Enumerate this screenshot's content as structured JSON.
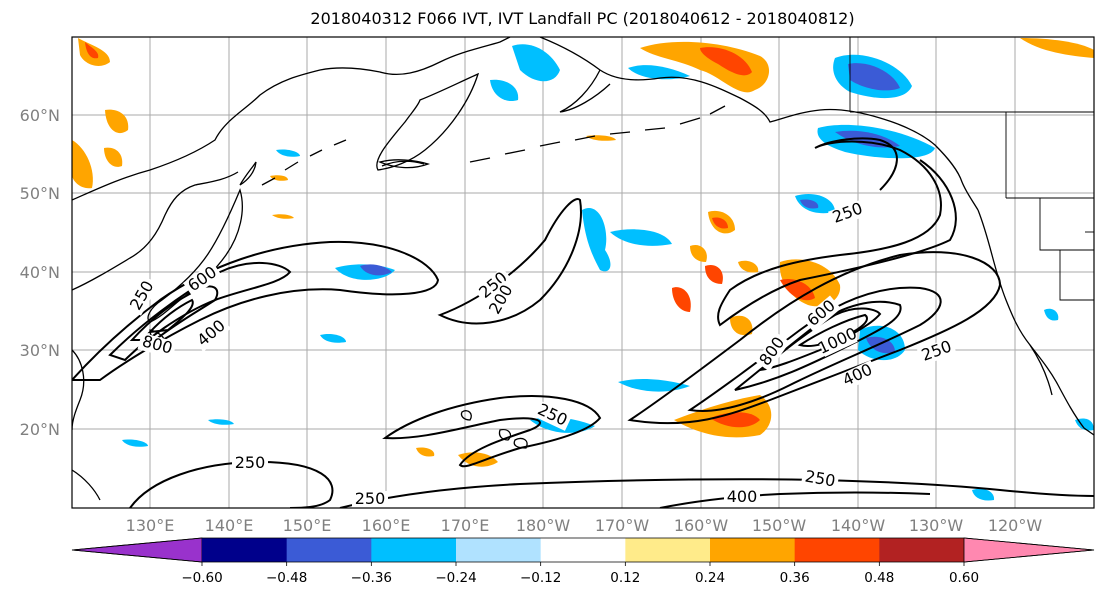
{
  "title": "2018040312 F066 IVT, IVT Landfall PC (2018040612 - 2018040812)",
  "lat_labels": [
    "60°N",
    "50°N",
    "40°N",
    "30°N",
    "20°N"
  ],
  "lon_labels": [
    "130°E",
    "140°E",
    "150°E",
    "160°E",
    "170°E",
    "180°W",
    "170°W",
    "160°W",
    "150°W",
    "140°W",
    "130°W",
    "120°W"
  ],
  "contour_labels": [
    "250",
    "250",
    "250",
    "250",
    "250",
    "250",
    "250",
    "400",
    "400",
    "400",
    "600",
    "800",
    "800",
    "1000",
    "600",
    "250",
    "200"
  ],
  "colorbar": {
    "colors": [
      "#9932cc",
      "#00008b",
      "#3b5bd6",
      "#00bfff",
      "#b0e2ff",
      "#ffffff",
      "#ffeb8a",
      "#ffa500",
      "#ff4500",
      "#b22222",
      "#ff88b0"
    ],
    "tick_labels": [
      "−0.60",
      "−0.48",
      "−0.36",
      "−0.24",
      "−0.12",
      "0.12",
      "0.24",
      "0.36",
      "0.48",
      "0.60"
    ]
  },
  "colors": {
    "grid": "#aaaaaa",
    "coast": "#000000",
    "contour": "#000000"
  }
}
